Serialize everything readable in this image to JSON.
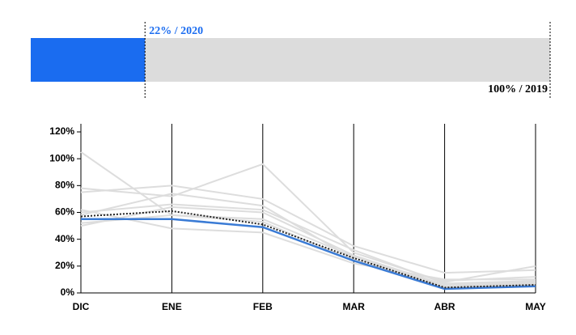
{
  "chart_data": [
    {
      "type": "progress",
      "values": [
        22,
        100
      ],
      "value_labels": [
        "22% / 2020",
        "100% / 2019"
      ],
      "colors": [
        "#1a6cf0",
        "#dcdcdc"
      ],
      "xlim": [
        0,
        100
      ]
    },
    {
      "type": "line",
      "categories": [
        "DIC",
        "ENE",
        "FEB",
        "MAR",
        "ABR",
        "MAY"
      ],
      "ylim": [
        0,
        120
      ],
      "yticks": [
        {
          "value": 0,
          "label": "0%"
        },
        {
          "value": 20,
          "label": "20%"
        },
        {
          "value": 40,
          "label": "40%"
        },
        {
          "value": 60,
          "label": "60%"
        },
        {
          "value": 80,
          "label": "80%"
        },
        {
          "value": 100,
          "label": "100%"
        },
        {
          "value": 120,
          "label": "120%"
        }
      ],
      "grid": true,
      "series": [
        {
          "color": "#dddddd",
          "values": [
            105,
            58,
            55,
            27,
            5,
            7
          ]
        },
        {
          "color": "#dddddd",
          "values": [
            78,
            72,
            96,
            30,
            8,
            20
          ]
        },
        {
          "color": "#dddddd",
          "values": [
            75,
            80,
            70,
            35,
            15,
            17
          ]
        },
        {
          "color": "#dddddd",
          "values": [
            62,
            48,
            45,
            22,
            10,
            10
          ]
        },
        {
          "color": "#dddddd",
          "values": [
            50,
            64,
            60,
            28,
            6,
            8
          ]
        },
        {
          "color": "#dddddd",
          "values": [
            60,
            66,
            62,
            32,
            7,
            9
          ]
        },
        {
          "color": "#dddddd",
          "values": [
            58,
            74,
            65,
            25,
            4,
            6
          ]
        },
        {
          "color": "#dddddd",
          "values": [
            52,
            58,
            53,
            24,
            9,
            12
          ]
        },
        {
          "color": "#3a7bd5",
          "values": [
            55,
            55,
            49,
            24,
            3,
            5
          ]
        },
        {
          "color": "#222222",
          "dash": true,
          "values": [
            57,
            61,
            51,
            26,
            4,
            6
          ]
        }
      ]
    }
  ]
}
